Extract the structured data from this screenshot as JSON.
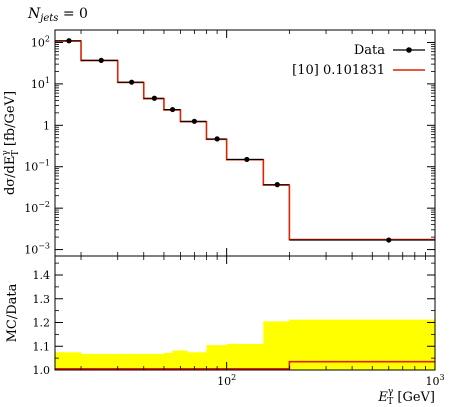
{
  "chart_data": [
    {
      "type": "line",
      "subtype": "step-histogram",
      "title": "N_jets = 0",
      "title_parts": {
        "base": "N",
        "sub": "jets",
        "rest": " = 0"
      },
      "xlabel": "",
      "ylabel": "dσ/dE_T^γ [fb/GeV]",
      "ylabel_parts": {
        "a": "dσ/dE",
        "sup": "γ",
        "sub": "T",
        "b": " [fb/GeV]"
      },
      "x_scale": "log",
      "y_scale": "log",
      "xlim": [
        15,
        1000
      ],
      "ylim": [
        0.0007,
        200
      ],
      "y_ticks": [
        {
          "value": 0.001,
          "mant": "10",
          "exp": "−3"
        },
        {
          "value": 0.01,
          "mant": "10",
          "exp": "−2"
        },
        {
          "value": 0.1,
          "mant": "10",
          "exp": "−1"
        },
        {
          "value": 1,
          "mant": "1",
          "exp": ""
        },
        {
          "value": 10,
          "mant": "10",
          "exp": "1"
        },
        {
          "value": 100,
          "mant": "10",
          "exp": "2"
        }
      ],
      "legend": {
        "position": "top-right",
        "entries": [
          {
            "label": "Data",
            "color": "#000000",
            "marker": "point-with-errorbar"
          },
          {
            "label": "[10] 0.101831",
            "color": "#dd2200",
            "marker": "line"
          }
        ]
      },
      "bins": [
        [
          15,
          20
        ],
        [
          20,
          30
        ],
        [
          30,
          40
        ],
        [
          40,
          50
        ],
        [
          50,
          60
        ],
        [
          60,
          80
        ],
        [
          80,
          100
        ],
        [
          100,
          150
        ],
        [
          150,
          200
        ],
        [
          200,
          1000
        ]
      ],
      "series": [
        {
          "name": "Data",
          "color": "#000000",
          "x": [
            17.5,
            25,
            35,
            45,
            55,
            70,
            90,
            125,
            175,
            600
          ],
          "values": [
            110,
            37,
            11,
            4.5,
            2.4,
            1.25,
            0.47,
            0.15,
            0.037,
            0.0017
          ]
        },
        {
          "name": "[10] 0.101831",
          "color": "#dd2200",
          "values": [
            108,
            36.5,
            10.8,
            4.4,
            2.35,
            1.22,
            0.46,
            0.148,
            0.036,
            0.00175
          ]
        }
      ]
    },
    {
      "type": "area",
      "subtype": "ratio-band",
      "xlabel": "E_T^γ [GeV]",
      "xlabel_parts": {
        "a": "E",
        "sup": "γ",
        "sub": "T",
        "b": " [GeV]"
      },
      "ylabel": "MC/Data",
      "x_scale": "log",
      "xlim": [
        15,
        1000
      ],
      "ylim": [
        1.0,
        1.48
      ],
      "y_ticks": [
        "1.0",
        "1.1",
        "1.2",
        "1.3",
        "1.4"
      ],
      "x_ticks": [
        {
          "value": 100,
          "mant": "10",
          "exp": "2"
        },
        {
          "value": 1000,
          "mant": "10",
          "exp": "3"
        }
      ],
      "band_color": "#ffff00",
      "bins": [
        [
          15,
          20
        ],
        [
          20,
          30
        ],
        [
          30,
          40
        ],
        [
          40,
          50
        ],
        [
          50,
          60
        ],
        [
          60,
          80
        ],
        [
          80,
          100
        ],
        [
          100,
          150
        ],
        [
          150,
          200
        ],
        [
          200,
          1000
        ]
      ],
      "band_upper": [
        1.075,
        1.068,
        1.068,
        1.068,
        1.072,
        1.082,
        1.075,
        1.105,
        1.11,
        1.205,
        1.212
      ],
      "band_upper_bins": [
        [
          15,
          20
        ],
        [
          20,
          30
        ],
        [
          30,
          40
        ],
        [
          40,
          50
        ],
        [
          50,
          55
        ],
        [
          55,
          65
        ],
        [
          65,
          80
        ],
        [
          80,
          100
        ],
        [
          100,
          150
        ],
        [
          150,
          200
        ],
        [
          200,
          1000
        ]
      ],
      "ratio_line": {
        "color": "#dd2200",
        "values": [
          1.005,
          1.005,
          1.005,
          1.005,
          1.005,
          1.005,
          1.005,
          1.005,
          1.005,
          1.035
        ]
      }
    }
  ]
}
